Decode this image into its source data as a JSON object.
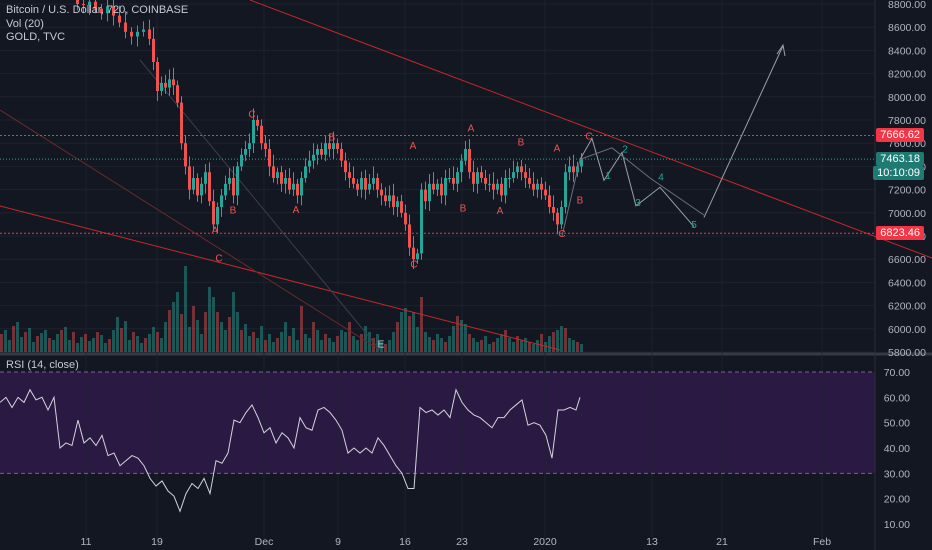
{
  "legend": {
    "symbol_line": "Bitcoin / U.S. Dollar, 720, COINBASE",
    "volume_line": "Vol (20)",
    "gold_line": "GOLD, TVC"
  },
  "rsi": {
    "title": "RSI (14, close)",
    "upper_band": 70,
    "lower_band": 30,
    "path": [
      [
        0,
        58
      ],
      [
        6,
        60
      ],
      [
        12,
        56
      ],
      [
        18,
        60
      ],
      [
        24,
        58
      ],
      [
        30,
        63
      ],
      [
        36,
        59
      ],
      [
        42,
        60
      ],
      [
        48,
        55
      ],
      [
        54,
        60
      ],
      [
        60,
        40
      ],
      [
        66,
        42
      ],
      [
        72,
        41
      ],
      [
        78,
        51
      ],
      [
        84,
        42
      ],
      [
        90,
        44
      ],
      [
        96,
        41
      ],
      [
        102,
        45
      ],
      [
        108,
        37
      ],
      [
        114,
        38
      ],
      [
        120,
        33
      ],
      [
        126,
        35
      ],
      [
        132,
        37
      ],
      [
        138,
        36
      ],
      [
        144,
        33
      ],
      [
        150,
        28
      ],
      [
        156,
        25
      ],
      [
        162,
        27
      ],
      [
        168,
        23
      ],
      [
        174,
        21
      ],
      [
        180,
        15
      ],
      [
        186,
        22
      ],
      [
        192,
        26
      ],
      [
        198,
        24
      ],
      [
        204,
        28
      ],
      [
        210,
        22
      ],
      [
        216,
        35
      ],
      [
        222,
        34
      ],
      [
        228,
        38
      ],
      [
        234,
        51
      ],
      [
        240,
        50
      ],
      [
        246,
        54
      ],
      [
        252,
        57
      ],
      [
        258,
        52
      ],
      [
        264,
        46
      ],
      [
        270,
        48
      ],
      [
        276,
        42
      ],
      [
        282,
        46
      ],
      [
        288,
        44
      ],
      [
        294,
        40
      ],
      [
        300,
        52
      ],
      [
        306,
        48
      ],
      [
        312,
        47
      ],
      [
        318,
        55
      ],
      [
        324,
        56
      ],
      [
        330,
        54
      ],
      [
        336,
        51
      ],
      [
        342,
        47
      ],
      [
        348,
        38
      ],
      [
        354,
        40
      ],
      [
        360,
        38
      ],
      [
        366,
        40
      ],
      [
        372,
        38
      ],
      [
        378,
        44
      ],
      [
        384,
        41
      ],
      [
        390,
        37
      ],
      [
        396,
        33
      ],
      [
        402,
        30
      ],
      [
        408,
        24
      ],
      [
        414,
        24
      ],
      [
        420,
        56
      ],
      [
        426,
        54
      ],
      [
        432,
        55
      ],
      [
        438,
        53
      ],
      [
        444,
        55
      ],
      [
        450,
        52
      ],
      [
        456,
        63
      ],
      [
        462,
        58
      ],
      [
        468,
        55
      ],
      [
        474,
        53
      ],
      [
        480,
        52
      ],
      [
        486,
        50
      ],
      [
        492,
        48
      ],
      [
        498,
        52
      ],
      [
        504,
        52
      ],
      [
        510,
        55
      ],
      [
        516,
        57
      ],
      [
        522,
        59
      ],
      [
        528,
        49
      ],
      [
        534,
        50
      ],
      [
        540,
        49
      ],
      [
        546,
        45
      ],
      [
        552,
        36
      ],
      [
        558,
        55
      ],
      [
        564,
        55
      ],
      [
        570,
        56
      ],
      [
        576,
        55
      ],
      [
        580,
        60
      ]
    ]
  },
  "price_tags": [
    {
      "value": "7666.62",
      "bg": "#f23645"
    },
    {
      "value": "7463.18",
      "bg": "#1f7a74"
    },
    {
      "value": "10:10:09",
      "bg": "#1f7a74"
    },
    {
      "value": "6823.46",
      "bg": "#f23645"
    }
  ],
  "annotations": [
    {
      "label": "A",
      "color": "#ef5350",
      "x": 215,
      "y": 6823
    },
    {
      "label": "B",
      "color": "#ef5350",
      "x": 233,
      "y": 6995
    },
    {
      "label": "C",
      "color": "#ef5350",
      "x": 219,
      "y": 6580
    },
    {
      "label": "C",
      "color": "#ef5350",
      "x": 252,
      "y": 7820
    },
    {
      "label": "A",
      "color": "#ef5350",
      "x": 296,
      "y": 7000
    },
    {
      "label": "B",
      "color": "#ef5350",
      "x": 332,
      "y": 7625
    },
    {
      "label": "A",
      "color": "#ef5350",
      "x": 413,
      "y": 7550
    },
    {
      "label": "C",
      "color": "#ef5350",
      "x": 414,
      "y": 6530
    },
    {
      "label": "A",
      "color": "#ef5350",
      "x": 471,
      "y": 7700
    },
    {
      "label": "B",
      "color": "#ef5350",
      "x": 463,
      "y": 7010
    },
    {
      "label": "B",
      "color": "#ef5350",
      "x": 521,
      "y": 7580
    },
    {
      "label": "A",
      "color": "#ef5350",
      "x": 500,
      "y": 6990
    },
    {
      "label": "A",
      "color": "#ef5350",
      "x": 557,
      "y": 7530
    },
    {
      "label": "B",
      "color": "#ef5350",
      "x": 580,
      "y": 7080
    },
    {
      "label": "C",
      "color": "#ef5350",
      "x": 562,
      "y": 6790
    },
    {
      "label": "C",
      "color": "#ef5350",
      "x": 589,
      "y": 7630
    },
    {
      "label": "1",
      "color": "#26a69a",
      "x": 608,
      "y": 7290
    },
    {
      "label": "2",
      "color": "#26a69a",
      "x": 625,
      "y": 7520
    },
    {
      "label": "3",
      "color": "#26a69a",
      "x": 638,
      "y": 7060
    },
    {
      "label": "4",
      "color": "#26a69a",
      "x": 661,
      "y": 7280
    },
    {
      "label": "5",
      "color": "#26a69a",
      "x": 694,
      "y": 6870
    },
    {
      "label": "E",
      "color": "#d1d4dc",
      "x": 381,
      "y": 5840
    }
  ],
  "chart_data": {
    "type": "candlestick",
    "symbol": "Bitcoin / U.S. Dollar",
    "interval": "720",
    "exchange": "COINBASE",
    "x_ticks": [
      "11",
      "19",
      "Dec",
      "9",
      "16",
      "23",
      "2020",
      "13",
      "21",
      "Feb"
    ],
    "y_ticks": [
      5800,
      6000,
      6200,
      6400,
      6600,
      6800,
      7000,
      7200,
      7400,
      7600,
      7800,
      8000,
      8200,
      8400,
      8600,
      8800
    ],
    "y_tick_labels": [
      "5800.00",
      "6000.00",
      "6200.00",
      "6400.00",
      "6600.00",
      "6800.00",
      "7000.00",
      "7200.00",
      "7400.00",
      "7600.00",
      "7800.00",
      "8000.00",
      "8200.00",
      "8400.00",
      "8600.00",
      "8800.00"
    ],
    "ylim": [
      5780,
      8860
    ],
    "rsi_ticks": [
      10,
      20,
      30,
      40,
      50,
      60,
      70
    ],
    "rsi_tick_labels": [
      "10.00",
      "20.00",
      "30.00",
      "40.00",
      "50.00",
      "60.00",
      "70.00"
    ],
    "horizontal_levels": [
      7666.62,
      6823.46
    ],
    "last_price": 7463.18,
    "countdown": "10:10:09",
    "close_path": [
      [
        70,
        8840
      ],
      [
        76,
        8800
      ],
      [
        82,
        8790
      ],
      [
        88,
        8820
      ],
      [
        94,
        8760
      ],
      [
        100,
        8720
      ],
      [
        106,
        8780
      ],
      [
        112,
        8700
      ],
      [
        118,
        8640
      ],
      [
        124,
        8560
      ],
      [
        130,
        8520
      ],
      [
        136,
        8560
      ],
      [
        142,
        8580
      ],
      [
        148,
        8500
      ],
      [
        152,
        8300
      ],
      [
        156,
        8050
      ],
      [
        160,
        8120
      ],
      [
        164,
        8080
      ],
      [
        168,
        8150
      ],
      [
        172,
        8100
      ],
      [
        176,
        7950
      ],
      [
        180,
        7600
      ],
      [
        184,
        7400
      ],
      [
        188,
        7200
      ],
      [
        192,
        7300
      ],
      [
        196,
        7150
      ],
      [
        200,
        7250
      ],
      [
        204,
        7350
      ],
      [
        208,
        7100
      ],
      [
        212,
        6900
      ],
      [
        216,
        7050
      ],
      [
        220,
        7150
      ],
      [
        224,
        7250
      ],
      [
        228,
        7300
      ],
      [
        232,
        7150
      ],
      [
        236,
        7400
      ],
      [
        240,
        7500
      ],
      [
        244,
        7550
      ],
      [
        248,
        7600
      ],
      [
        252,
        7800
      ],
      [
        256,
        7750
      ],
      [
        260,
        7600
      ],
      [
        264,
        7550
      ],
      [
        268,
        7400
      ],
      [
        272,
        7300
      ],
      [
        276,
        7350
      ],
      [
        280,
        7250
      ],
      [
        284,
        7300
      ],
      [
        288,
        7200
      ],
      [
        292,
        7250
      ],
      [
        296,
        7150
      ],
      [
        300,
        7300
      ],
      [
        304,
        7400
      ],
      [
        308,
        7450
      ],
      [
        312,
        7500
      ],
      [
        316,
        7550
      ],
      [
        320,
        7500
      ],
      [
        324,
        7600
      ],
      [
        328,
        7550
      ],
      [
        332,
        7600
      ],
      [
        336,
        7550
      ],
      [
        340,
        7450
      ],
      [
        344,
        7350
      ],
      [
        348,
        7300
      ],
      [
        352,
        7250
      ],
      [
        356,
        7200
      ],
      [
        360,
        7300
      ],
      [
        364,
        7200
      ],
      [
        368,
        7250
      ],
      [
        372,
        7300
      ],
      [
        376,
        7200
      ],
      [
        380,
        7150
      ],
      [
        384,
        7100
      ],
      [
        388,
        7150
      ],
      [
        392,
        7050
      ],
      [
        396,
        7100
      ],
      [
        400,
        7000
      ],
      [
        404,
        6900
      ],
      [
        408,
        6700
      ],
      [
        412,
        6600
      ],
      [
        416,
        6650
      ],
      [
        420,
        7200
      ],
      [
        424,
        7100
      ],
      [
        428,
        7250
      ],
      [
        432,
        7200
      ],
      [
        436,
        7250
      ],
      [
        440,
        7150
      ],
      [
        444,
        7300
      ],
      [
        448,
        7300
      ],
      [
        452,
        7250
      ],
      [
        456,
        7350
      ],
      [
        460,
        7450
      ],
      [
        464,
        7550
      ],
      [
        468,
        7350
      ],
      [
        472,
        7250
      ],
      [
        476,
        7350
      ],
      [
        480,
        7300
      ],
      [
        484,
        7250
      ],
      [
        488,
        7250
      ],
      [
        492,
        7200
      ],
      [
        496,
        7250
      ],
      [
        500,
        7150
      ],
      [
        504,
        7300
      ],
      [
        508,
        7300
      ],
      [
        512,
        7350
      ],
      [
        516,
        7400
      ],
      [
        520,
        7350
      ],
      [
        524,
        7300
      ],
      [
        528,
        7250
      ],
      [
        532,
        7200
      ],
      [
        536,
        7250
      ],
      [
        540,
        7200
      ],
      [
        544,
        7150
      ],
      [
        548,
        7050
      ],
      [
        552,
        7000
      ],
      [
        556,
        6900
      ],
      [
        560,
        7050
      ],
      [
        564,
        7350
      ],
      [
        568,
        7400
      ],
      [
        572,
        7350
      ],
      [
        576,
        7400
      ],
      [
        580,
        7460
      ]
    ],
    "volume": [
      [
        0,
        18
      ],
      [
        4,
        22
      ],
      [
        8,
        12
      ],
      [
        12,
        26
      ],
      [
        16,
        30
      ],
      [
        20,
        15
      ],
      [
        24,
        20
      ],
      [
        28,
        24
      ],
      [
        32,
        10
      ],
      [
        36,
        16
      ],
      [
        40,
        19
      ],
      [
        44,
        22
      ],
      [
        48,
        14
      ],
      [
        52,
        12
      ],
      [
        56,
        18
      ],
      [
        60,
        22
      ],
      [
        64,
        25
      ],
      [
        68,
        12
      ],
      [
        72,
        20
      ],
      [
        76,
        9
      ],
      [
        80,
        15
      ],
      [
        84,
        18
      ],
      [
        88,
        11
      ],
      [
        92,
        14
      ],
      [
        96,
        20
      ],
      [
        100,
        17
      ],
      [
        104,
        9
      ],
      [
        108,
        13
      ],
      [
        112,
        22
      ],
      [
        116,
        35
      ],
      [
        120,
        24
      ],
      [
        124,
        31
      ],
      [
        128,
        12
      ],
      [
        132,
        20
      ],
      [
        136,
        16
      ],
      [
        140,
        9
      ],
      [
        144,
        14
      ],
      [
        148,
        18
      ],
      [
        152,
        25
      ],
      [
        156,
        20
      ],
      [
        160,
        14
      ],
      [
        164,
        30
      ],
      [
        168,
        42
      ],
      [
        172,
        50
      ],
      [
        176,
        60
      ],
      [
        180,
        38
      ],
      [
        184,
        86
      ],
      [
        188,
        25
      ],
      [
        192,
        46
      ],
      [
        196,
        32
      ],
      [
        200,
        18
      ],
      [
        204,
        40
      ],
      [
        208,
        65
      ],
      [
        212,
        55
      ],
      [
        216,
        40
      ],
      [
        220,
        30
      ],
      [
        224,
        22
      ],
      [
        228,
        35
      ],
      [
        232,
        60
      ],
      [
        236,
        40
      ],
      [
        240,
        22
      ],
      [
        244,
        28
      ],
      [
        248,
        16
      ],
      [
        252,
        20
      ],
      [
        256,
        14
      ],
      [
        260,
        26
      ],
      [
        264,
        12
      ],
      [
        268,
        18
      ],
      [
        272,
        10
      ],
      [
        276,
        14
      ],
      [
        280,
        20
      ],
      [
        284,
        30
      ],
      [
        288,
        16
      ],
      [
        292,
        24
      ],
      [
        296,
        12
      ],
      [
        300,
        46
      ],
      [
        304,
        18
      ],
      [
        308,
        14
      ],
      [
        312,
        30
      ],
      [
        316,
        22
      ],
      [
        320,
        12
      ],
      [
        324,
        18
      ],
      [
        328,
        14
      ],
      [
        332,
        10
      ],
      [
        336,
        16
      ],
      [
        340,
        22
      ],
      [
        344,
        20
      ],
      [
        348,
        30
      ],
      [
        352,
        16
      ],
      [
        356,
        12
      ],
      [
        360,
        18
      ],
      [
        364,
        26
      ],
      [
        368,
        20
      ],
      [
        372,
        14
      ],
      [
        376,
        18
      ],
      [
        380,
        10
      ],
      [
        384,
        8
      ],
      [
        388,
        12
      ],
      [
        392,
        20
      ],
      [
        396,
        30
      ],
      [
        400,
        40
      ],
      [
        404,
        44
      ],
      [
        408,
        36
      ],
      [
        412,
        40
      ],
      [
        416,
        25
      ],
      [
        420,
        55
      ],
      [
        424,
        20
      ],
      [
        428,
        15
      ],
      [
        432,
        12
      ],
      [
        436,
        18
      ],
      [
        440,
        14
      ],
      [
        444,
        10
      ],
      [
        448,
        16
      ],
      [
        452,
        26
      ],
      [
        456,
        36
      ],
      [
        460,
        32
      ],
      [
        464,
        28
      ],
      [
        468,
        18
      ],
      [
        472,
        14
      ],
      [
        476,
        10
      ],
      [
        480,
        12
      ],
      [
        484,
        16
      ],
      [
        488,
        8
      ],
      [
        492,
        10
      ],
      [
        496,
        14
      ],
      [
        500,
        18
      ],
      [
        504,
        22
      ],
      [
        508,
        14
      ],
      [
        512,
        10
      ],
      [
        516,
        16
      ],
      [
        520,
        12
      ],
      [
        524,
        14
      ],
      [
        528,
        10
      ],
      [
        532,
        8
      ],
      [
        536,
        12
      ],
      [
        540,
        18
      ],
      [
        544,
        10
      ],
      [
        548,
        16
      ],
      [
        552,
        20
      ],
      [
        556,
        22
      ],
      [
        560,
        26
      ],
      [
        564,
        24
      ],
      [
        568,
        14
      ],
      [
        572,
        12
      ],
      [
        576,
        10
      ],
      [
        580,
        8
      ]
    ]
  }
}
